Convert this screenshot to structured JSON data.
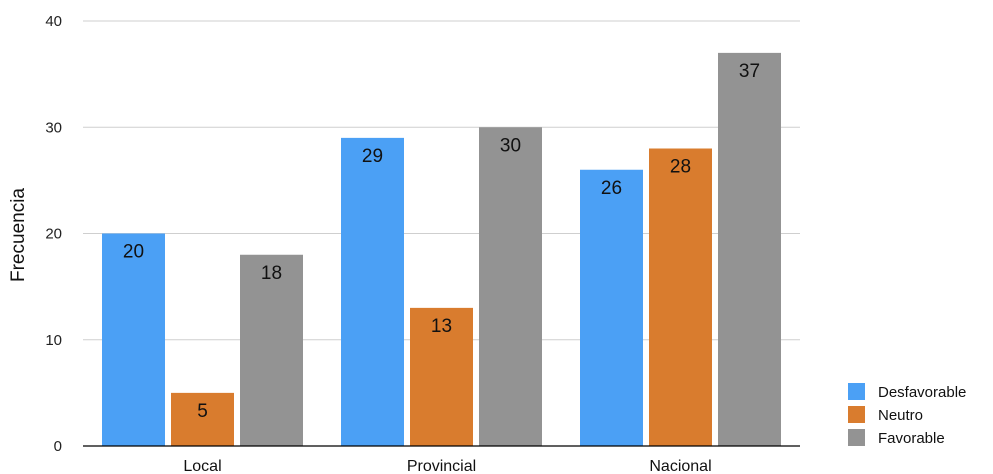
{
  "chart_data": {
    "type": "bar",
    "title": "",
    "xlabel": "",
    "ylabel": "Frecuencia",
    "ylim": [
      0,
      40
    ],
    "yticks": [
      0,
      10,
      20,
      30,
      40
    ],
    "grid": true,
    "legend_position": "bottom-right",
    "categories": [
      "Local",
      "Provincial",
      "Nacional"
    ],
    "series": [
      {
        "name": "Desfavorable",
        "color": "#4ba0f5",
        "values": [
          20,
          29,
          26
        ]
      },
      {
        "name": "Neutro",
        "color": "#d97c2e",
        "values": [
          5,
          13,
          28
        ]
      },
      {
        "name": "Favorable",
        "color": "#939393",
        "values": [
          18,
          30,
          37
        ]
      }
    ]
  }
}
